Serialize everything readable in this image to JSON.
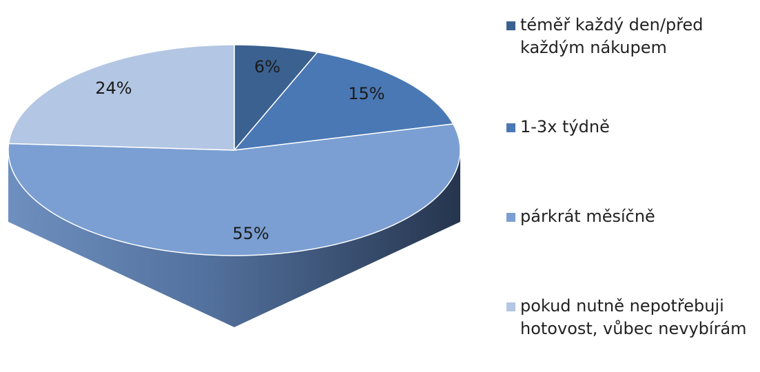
{
  "chart_data": {
    "type": "pie3d",
    "categories": [
      "téměř každý den/před každým nákupem",
      "1-3x týdně",
      "párkrát měsíčně",
      "pokud nutně nepotřebuji hotovost, vůbec nevybírám"
    ],
    "values": [
      6,
      15,
      55,
      24
    ],
    "value_labels": [
      "6%",
      "15%",
      "55%",
      "24%"
    ],
    "colors": [
      "#3b6190",
      "#4a78b4",
      "#7b9fd2",
      "#b3c6e3"
    ]
  }
}
